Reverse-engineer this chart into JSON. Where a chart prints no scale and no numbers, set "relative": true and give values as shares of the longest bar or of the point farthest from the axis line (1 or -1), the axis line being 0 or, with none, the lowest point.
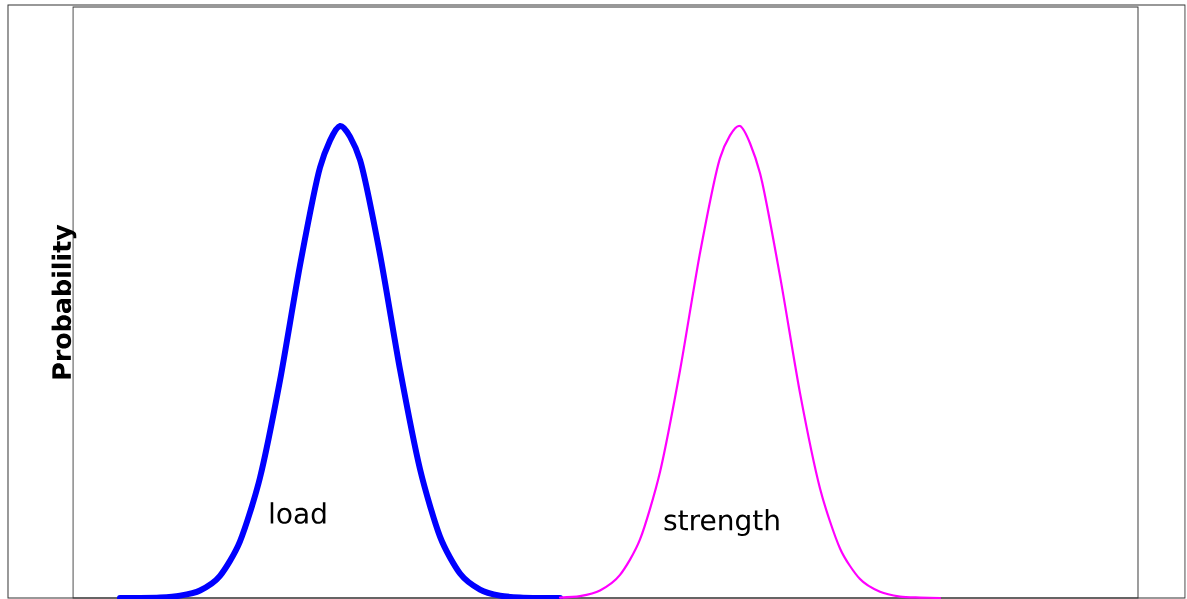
{
  "chart_data": {
    "type": "line",
    "ylabel": "Probability",
    "relative": true,
    "marker": "none",
    "categories": [
      null,
      null,
      null,
      null,
      null,
      null,
      null,
      null,
      null,
      null,
      null,
      null,
      null,
      null,
      null,
      null,
      null,
      null,
      null,
      null,
      null,
      null,
      null,
      null,
      null,
      null,
      null,
      null,
      null,
      null,
      null,
      null,
      null,
      null,
      null,
      null,
      null,
      null,
      null,
      null,
      null,
      null
    ],
    "series": [
      {
        "name": "load",
        "color": "#0000ff",
        "values": [
          0.0,
          0.0,
          0.001,
          0.005,
          0.016,
          0.047,
          0.12,
          0.255,
          0.461,
          0.705,
          0.912,
          1.0,
          0.928,
          0.728,
          0.484,
          0.273,
          0.13,
          0.052,
          0.018,
          0.005,
          0.001,
          0.0,
          0.0,
          null,
          null,
          null,
          null,
          null,
          null,
          null,
          null,
          null,
          null,
          null,
          null,
          null,
          null,
          null,
          null,
          null,
          null,
          null
        ]
      },
      {
        "name": "strength",
        "color": "#ff00ff",
        "values": [
          null,
          null,
          null,
          null,
          null,
          null,
          null,
          null,
          null,
          null,
          null,
          null,
          null,
          null,
          null,
          null,
          null,
          null,
          null,
          null,
          null,
          null,
          0.001,
          0.004,
          0.016,
          0.049,
          0.124,
          0.267,
          0.482,
          0.731,
          0.932,
          1.0,
          0.9,
          0.682,
          0.434,
          0.232,
          0.105,
          0.04,
          0.013,
          0.003,
          0.001,
          0.0
        ]
      }
    ]
  }
}
